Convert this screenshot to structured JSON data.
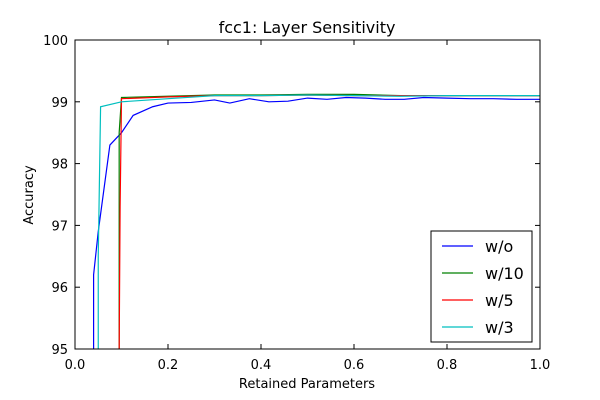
{
  "chart_data": {
    "type": "line",
    "title": "fcc1: Layer Sensitivity",
    "xlabel": "Retained Parameters",
    "ylabel": "Accuracy",
    "xlim": [
      0.0,
      1.0
    ],
    "ylim": [
      95,
      100
    ],
    "xticks": [
      "0.0",
      "0.2",
      "0.4",
      "0.6",
      "0.8",
      "1.0"
    ],
    "yticks": [
      "95",
      "96",
      "97",
      "98",
      "99",
      "100"
    ],
    "legend_position": "lower-right",
    "grid": false,
    "series": [
      {
        "name": "w/o",
        "color": "#0000ff",
        "x": [
          0.04,
          0.04,
          0.05,
          0.075,
          0.1,
          0.125,
          0.167,
          0.2,
          0.25,
          0.3,
          0.333,
          0.375,
          0.417,
          0.458,
          0.5,
          0.542,
          0.583,
          0.625,
          0.667,
          0.708,
          0.75,
          0.8,
          0.85,
          0.9,
          0.95,
          1.0
        ],
        "y": [
          95.0,
          96.2,
          96.9,
          98.3,
          98.5,
          98.78,
          98.92,
          98.98,
          98.99,
          99.03,
          98.98,
          99.05,
          99.0,
          99.01,
          99.06,
          99.04,
          99.07,
          99.06,
          99.04,
          99.04,
          99.07,
          99.06,
          99.05,
          99.05,
          99.04,
          99.04
        ]
      },
      {
        "name": "w/10",
        "color": "#008000",
        "x": [
          0.095,
          0.095,
          0.1,
          0.2,
          0.3,
          0.4,
          0.5,
          0.6,
          0.7,
          0.8,
          0.9,
          1.0
        ],
        "y": [
          95.0,
          98.5,
          99.07,
          99.09,
          99.11,
          99.11,
          99.12,
          99.12,
          99.1,
          99.1,
          99.1,
          99.1
        ]
      },
      {
        "name": "w/5",
        "color": "#ff0000",
        "x": [
          0.095,
          0.097,
          0.1,
          0.2,
          0.3,
          0.4,
          0.5,
          0.6,
          0.7,
          0.8,
          0.9,
          1.0
        ],
        "y": [
          95.0,
          97.3,
          99.05,
          99.08,
          99.1,
          99.1,
          99.11,
          99.1,
          99.1,
          99.1,
          99.1,
          99.1
        ]
      },
      {
        "name": "w/3",
        "color": "#00bfbf",
        "x": [
          0.05,
          0.05,
          0.055,
          0.1,
          0.2,
          0.3,
          0.4,
          0.5,
          0.6,
          0.7,
          0.8,
          0.9,
          1.0
        ],
        "y": [
          95.0,
          96.5,
          98.92,
          99.0,
          99.05,
          99.1,
          99.1,
          99.11,
          99.1,
          99.09,
          99.1,
          99.1,
          99.1
        ]
      }
    ]
  }
}
